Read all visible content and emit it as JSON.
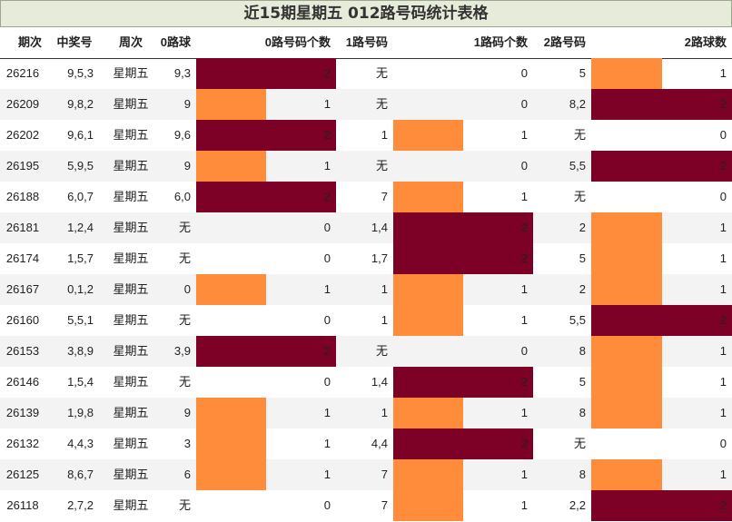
{
  "title": "近15期星期五 012路号码统计表格",
  "colors": {
    "count2": "#7d0027",
    "count1": "#ff8c3b",
    "header_bg": "#e6ecd9",
    "alt_row": "#f3f3f3"
  },
  "headers": {
    "period": "期次",
    "winning": "中奖号",
    "weekday": "周次",
    "r0": "0路球",
    "r0count": "0路号码个数",
    "r1": "1路号码",
    "r1count": "1路码个数",
    "r2": "2路号码",
    "r2count": "2路球数"
  },
  "rows": [
    {
      "period": "26216",
      "winning": "9,5,3",
      "weekday": "星期五",
      "r0": "9,3",
      "c0": 2,
      "r1": "无",
      "c1": 0,
      "r2": "5",
      "c2": 1
    },
    {
      "period": "26209",
      "winning": "9,8,2",
      "weekday": "星期五",
      "r0": "9",
      "c0": 1,
      "r1": "无",
      "c1": 0,
      "r2": "8,2",
      "c2": 2
    },
    {
      "period": "26202",
      "winning": "9,6,1",
      "weekday": "星期五",
      "r0": "9,6",
      "c0": 2,
      "r1": "1",
      "c1": 1,
      "r2": "无",
      "c2": 0
    },
    {
      "period": "26195",
      "winning": "5,9,5",
      "weekday": "星期五",
      "r0": "9",
      "c0": 1,
      "r1": "无",
      "c1": 0,
      "r2": "5,5",
      "c2": 2
    },
    {
      "period": "26188",
      "winning": "6,0,7",
      "weekday": "星期五",
      "r0": "6,0",
      "c0": 2,
      "r1": "7",
      "c1": 1,
      "r2": "无",
      "c2": 0
    },
    {
      "period": "26181",
      "winning": "1,2,4",
      "weekday": "星期五",
      "r0": "无",
      "c0": 0,
      "r1": "1,4",
      "c1": 2,
      "r2": "2",
      "c2": 1
    },
    {
      "period": "26174",
      "winning": "1,5,7",
      "weekday": "星期五",
      "r0": "无",
      "c0": 0,
      "r1": "1,7",
      "c1": 2,
      "r2": "5",
      "c2": 1
    },
    {
      "period": "26167",
      "winning": "0,1,2",
      "weekday": "星期五",
      "r0": "0",
      "c0": 1,
      "r1": "1",
      "c1": 1,
      "r2": "2",
      "c2": 1
    },
    {
      "period": "26160",
      "winning": "5,5,1",
      "weekday": "星期五",
      "r0": "无",
      "c0": 0,
      "r1": "1",
      "c1": 1,
      "r2": "5,5",
      "c2": 2
    },
    {
      "period": "26153",
      "winning": "3,8,9",
      "weekday": "星期五",
      "r0": "3,9",
      "c0": 2,
      "r1": "无",
      "c1": 0,
      "r2": "8",
      "c2": 1
    },
    {
      "period": "26146",
      "winning": "1,5,4",
      "weekday": "星期五",
      "r0": "无",
      "c0": 0,
      "r1": "1,4",
      "c1": 2,
      "r2": "5",
      "c2": 1
    },
    {
      "period": "26139",
      "winning": "1,9,8",
      "weekday": "星期五",
      "r0": "9",
      "c0": 1,
      "r1": "1",
      "c1": 1,
      "r2": "8",
      "c2": 1
    },
    {
      "period": "26132",
      "winning": "4,4,3",
      "weekday": "星期五",
      "r0": "3",
      "c0": 1,
      "r1": "4,4",
      "c1": 2,
      "r2": "无",
      "c2": 0
    },
    {
      "period": "26125",
      "winning": "8,6,7",
      "weekday": "星期五",
      "r0": "6",
      "c0": 1,
      "r1": "7",
      "c1": 1,
      "r2": "8",
      "c2": 1
    },
    {
      "period": "26118",
      "winning": "2,7,2",
      "weekday": "星期五",
      "r0": "无",
      "c0": 0,
      "r1": "7",
      "c1": 1,
      "r2": "2,2",
      "c2": 2
    }
  ]
}
